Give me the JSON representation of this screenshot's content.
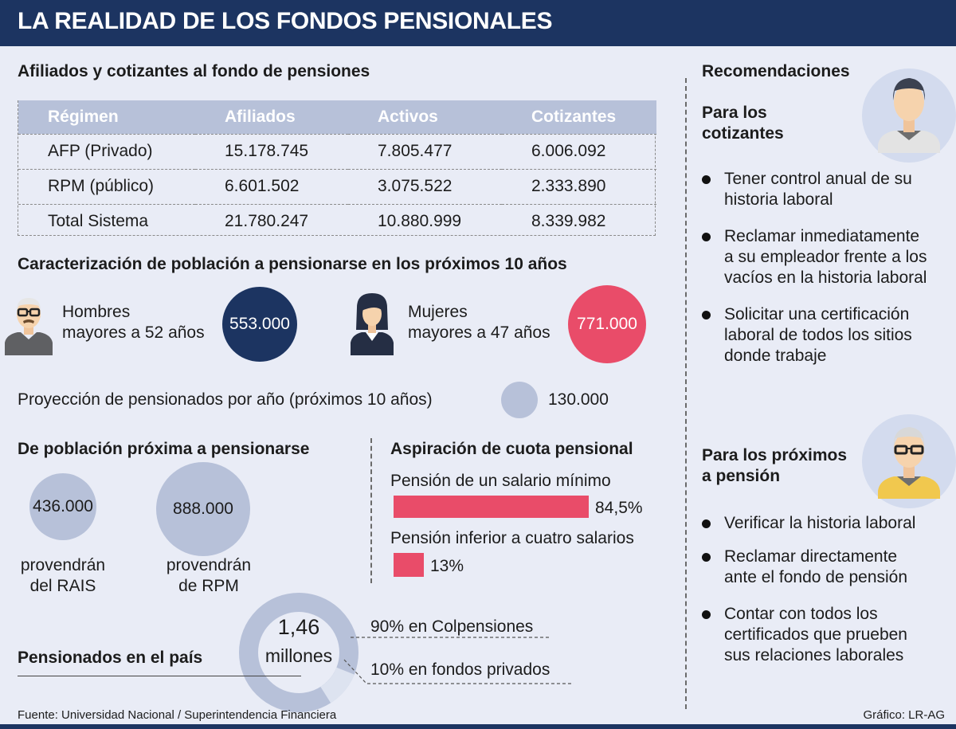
{
  "header": {
    "title": "LA REALIDAD DE LOS FONDOS PENSIONALES"
  },
  "afiliados": {
    "title": "Afiliados y cotizantes al fondo de pensiones",
    "columns": [
      "Régimen",
      "Afiliados",
      "Activos",
      "Cotizantes"
    ],
    "rows": [
      [
        "AFP (Privado)",
        "15.178.745",
        "7.805.477",
        "6.006.092"
      ],
      [
        "RPM (público)",
        "6.601.502",
        "3.075.522",
        "2.333.890"
      ],
      [
        "Total Sistema",
        "21.780.247",
        "10.880.999",
        "8.339.982"
      ]
    ]
  },
  "caracterizacion": {
    "title": "Caracterización de población a pensionarse en los próximos 10 años",
    "hombres": {
      "label": "Hombres",
      "sub": "mayores a 52 años",
      "value": "553.000"
    },
    "mujeres": {
      "label": "Mujeres",
      "sub": "mayores a 47 años",
      "value": "771.000"
    },
    "proyeccion": {
      "label": "Proyección de pensionados por año (próximos 10 años)",
      "value": "130.000"
    }
  },
  "poblacion": {
    "title": "De población próxima a pensionarse",
    "rais": {
      "value": "436.000",
      "line1": "provendrán",
      "line2": "del RAIS"
    },
    "rpm": {
      "value": "888.000",
      "line1": "provendrán",
      "line2": "de RPM"
    }
  },
  "aspiracion": {
    "title": "Aspiración de cuota pensional",
    "items": [
      {
        "label": "Pensión de un salario mínimo",
        "value": "84,5%",
        "pct": 84.5
      },
      {
        "label": "Pensión inferior a cuatro salarios",
        "value": "13%",
        "pct": 13
      }
    ]
  },
  "pensionados": {
    "title": "Pensionados en el país",
    "total_line1": "1,46",
    "total_line2": "millones",
    "colpensiones": "90% en Colpensiones",
    "privados": "10% en fondos privados",
    "colpensiones_pct": 90
  },
  "recomendaciones": {
    "title": "Recomendaciones",
    "cotizantes": {
      "title_line1": "Para los",
      "title_line2": "cotizantes",
      "items": [
        [
          "Tener control anual de su",
          "historia laboral"
        ],
        [
          "Reclamar inmediatamente",
          "a su empleador frente a los",
          "vacíos en la historia laboral"
        ],
        [
          "Solicitar una certificación",
          "laboral de todos los sitios",
          "donde trabaje"
        ]
      ]
    },
    "proximos": {
      "title_line1": "Para los próximos",
      "title_line2": "a pensión",
      "items": [
        [
          "Verificar la historia laboral"
        ],
        [
          "Reclamar directamente",
          "ante el fondo de pensión"
        ],
        [
          "Contar con todos los",
          "certificados que prueben",
          "sus relaciones laborales"
        ]
      ]
    }
  },
  "footer": {
    "source": "Fuente: Universidad Nacional / Superintendencia Financiera",
    "credit": "Gráfico: LR-AG"
  },
  "colors": {
    "navy": "#1c3461",
    "pink": "#e94c69",
    "light_blue": "#b7c1d9"
  }
}
